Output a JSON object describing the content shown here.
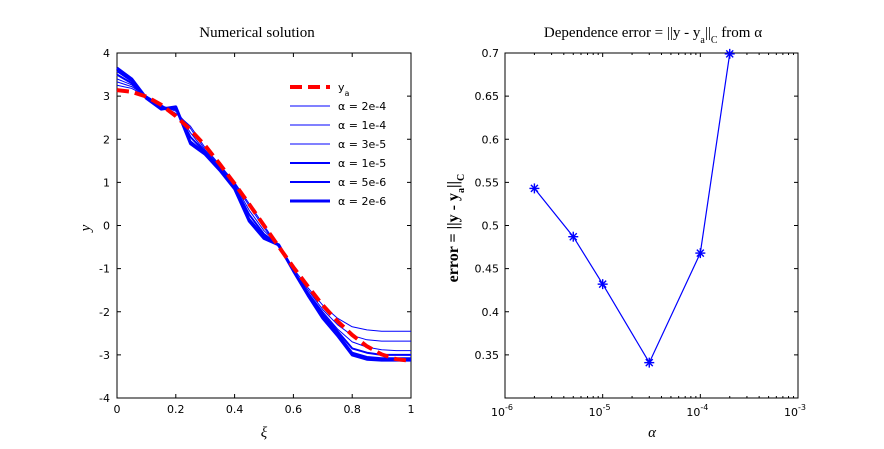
{
  "chart_data": [
    {
      "type": "line",
      "title": "Numerical solution",
      "xlabel": "ξ",
      "ylabel": "y",
      "xlim": [
        0,
        1
      ],
      "ylim": [
        -4,
        4
      ],
      "xticks": [
        0,
        0.2,
        0.4,
        0.6,
        0.8,
        1
      ],
      "xtick_labels": [
        "0",
        "0.2",
        "0.4",
        "0.6",
        "0.8",
        "1"
      ],
      "yticks": [
        -4,
        -3,
        -2,
        -1,
        0,
        1,
        2,
        3,
        4
      ],
      "ytick_labels": [
        "-4",
        "-3",
        "-2",
        "-1",
        "0",
        "1",
        "2",
        "3",
        "4"
      ],
      "grid": false,
      "legend_position": "top-right",
      "series": [
        {
          "name": "y_a",
          "legend_text": "y",
          "legend_sub": "a",
          "color": "#ff0000",
          "style": "dashed",
          "x": [
            0,
            0.05,
            0.1,
            0.15,
            0.2,
            0.25,
            0.3,
            0.35,
            0.4,
            0.45,
            0.5,
            0.55,
            0.6,
            0.65,
            0.7,
            0.75,
            0.8,
            0.85,
            0.9,
            0.95,
            1
          ],
          "y": [
            3.14,
            3.1,
            2.99,
            2.8,
            2.54,
            2.22,
            1.85,
            1.42,
            0.97,
            0.49,
            0.0,
            -0.49,
            -0.97,
            -1.42,
            -1.85,
            -2.22,
            -2.54,
            -2.8,
            -2.99,
            -3.1,
            -3.14
          ]
        },
        {
          "name": "α = 2e-4",
          "color": "#0000ff",
          "style": "solid",
          "x": [
            0,
            0.05,
            0.1,
            0.15,
            0.2,
            0.25,
            0.3,
            0.35,
            0.4,
            0.45,
            0.5,
            0.55,
            0.6,
            0.65,
            0.7,
            0.75,
            0.8,
            0.85,
            0.9,
            0.95,
            1
          ],
          "y": [
            3.25,
            3.18,
            3.0,
            2.8,
            2.6,
            2.3,
            1.8,
            1.4,
            1.0,
            0.5,
            0.0,
            -0.5,
            -1.0,
            -1.45,
            -1.85,
            -2.15,
            -2.35,
            -2.42,
            -2.45,
            -2.45,
            -2.45
          ]
        },
        {
          "name": "α = 1e-4",
          "color": "#0000ff",
          "style": "solid",
          "x": [
            0,
            0.05,
            0.1,
            0.15,
            0.2,
            0.25,
            0.3,
            0.35,
            0.4,
            0.45,
            0.5,
            0.55,
            0.6,
            0.65,
            0.7,
            0.75,
            0.8,
            0.85,
            0.9,
            0.95,
            1
          ],
          "y": [
            3.33,
            3.22,
            3.0,
            2.78,
            2.65,
            2.25,
            1.75,
            1.38,
            0.98,
            0.45,
            -0.05,
            -0.5,
            -1.05,
            -1.5,
            -1.95,
            -2.3,
            -2.55,
            -2.65,
            -2.68,
            -2.68,
            -2.68
          ]
        },
        {
          "name": "α = 3e-5",
          "color": "#0000ff",
          "style": "solid",
          "x": [
            0,
            0.05,
            0.1,
            0.15,
            0.2,
            0.25,
            0.3,
            0.35,
            0.4,
            0.45,
            0.5,
            0.55,
            0.6,
            0.65,
            0.7,
            0.75,
            0.8,
            0.85,
            0.9,
            0.95,
            1
          ],
          "y": [
            3.4,
            3.26,
            2.98,
            2.76,
            2.68,
            2.15,
            1.72,
            1.35,
            0.95,
            0.35,
            -0.12,
            -0.45,
            -1.05,
            -1.55,
            -2.0,
            -2.4,
            -2.7,
            -2.82,
            -2.88,
            -2.9,
            -2.9
          ]
        },
        {
          "name": "α = 1e-5",
          "color": "#0000ff",
          "style": "solid-medium",
          "x": [
            0,
            0.05,
            0.1,
            0.15,
            0.2,
            0.25,
            0.3,
            0.35,
            0.4,
            0.45,
            0.5,
            0.55,
            0.6,
            0.65,
            0.7,
            0.75,
            0.8,
            0.85,
            0.9,
            0.95,
            1
          ],
          "y": [
            3.5,
            3.3,
            2.97,
            2.74,
            2.7,
            2.05,
            1.7,
            1.32,
            0.9,
            0.25,
            -0.2,
            -0.45,
            -1.05,
            -1.58,
            -2.05,
            -2.45,
            -2.85,
            -2.95,
            -3.0,
            -3.0,
            -3.0
          ]
        },
        {
          "name": "α = 5e-6",
          "color": "#0000ff",
          "style": "solid-medium",
          "x": [
            0,
            0.05,
            0.1,
            0.15,
            0.2,
            0.25,
            0.3,
            0.35,
            0.4,
            0.45,
            0.5,
            0.55,
            0.6,
            0.65,
            0.7,
            0.75,
            0.8,
            0.85,
            0.9,
            0.95,
            1
          ],
          "y": [
            3.58,
            3.35,
            2.96,
            2.72,
            2.72,
            1.95,
            1.68,
            1.3,
            0.88,
            0.15,
            -0.25,
            -0.45,
            -1.05,
            -1.6,
            -2.1,
            -2.5,
            -2.95,
            -3.05,
            -3.08,
            -3.08,
            -3.08
          ]
        },
        {
          "name": "α = 2e-6",
          "color": "#0000ff",
          "style": "solid-thick",
          "x": [
            0,
            0.05,
            0.1,
            0.15,
            0.2,
            0.25,
            0.3,
            0.35,
            0.4,
            0.45,
            0.5,
            0.55,
            0.6,
            0.65,
            0.7,
            0.75,
            0.8,
            0.85,
            0.9,
            0.95,
            1
          ],
          "y": [
            3.65,
            3.4,
            2.95,
            2.7,
            2.75,
            1.9,
            1.65,
            1.28,
            0.85,
            0.1,
            -0.3,
            -0.45,
            -1.05,
            -1.62,
            -2.15,
            -2.55,
            -3.0,
            -3.1,
            -3.12,
            -3.12,
            -3.12
          ]
        }
      ]
    },
    {
      "type": "line",
      "title_parts": [
        "Dependence error = ||y - y",
        "a",
        "||",
        "C",
        " from α"
      ],
      "xlabel": "α",
      "ylabel_parts": [
        "error = ||y - y",
        "a",
        "||",
        "C"
      ],
      "xscale": "log",
      "xlim": [
        1e-06,
        0.001
      ],
      "ylim": [
        0.3,
        0.7
      ],
      "xticks": [
        1e-06,
        1e-05,
        0.0001,
        0.001
      ],
      "xtick_labels": [
        {
          "base": "10",
          "exp": "-6"
        },
        {
          "base": "10",
          "exp": "-5"
        },
        {
          "base": "10",
          "exp": "-4"
        },
        {
          "base": "10",
          "exp": "-3"
        }
      ],
      "yticks": [
        0.3,
        0.35,
        0.4,
        0.45,
        0.5,
        0.55,
        0.6,
        0.65,
        0.7
      ],
      "ytick_labels": [
        "",
        "0.35",
        "0.4",
        "0.45",
        "0.5",
        "0.55",
        "0.6",
        "0.65",
        "0.7"
      ],
      "grid": false,
      "series": [
        {
          "color": "#0000ff",
          "marker": "asterisk",
          "x": [
            2e-06,
            5e-06,
            1e-05,
            3e-05,
            0.0001,
            0.0002
          ],
          "y": [
            0.543,
            0.487,
            0.432,
            0.341,
            0.468,
            0.699
          ]
        }
      ]
    }
  ]
}
